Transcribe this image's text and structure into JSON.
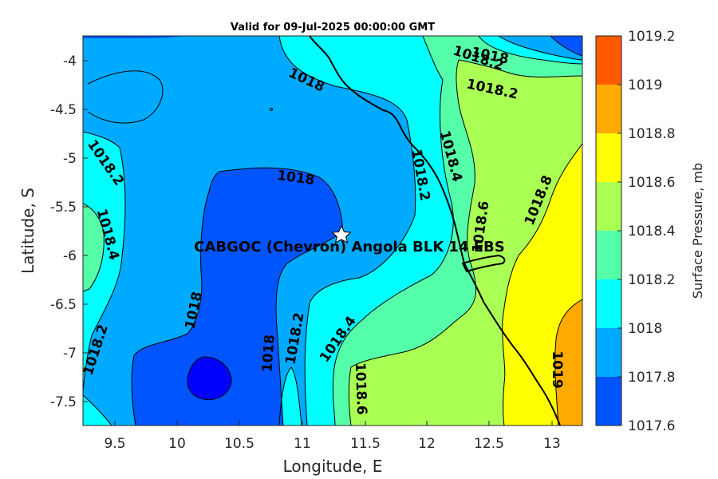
{
  "title": "Valid for 09-Jul-2025 00:00:00 GMT",
  "x_axis": {
    "label": "Longitude, E",
    "ticks": [
      "9.5",
      "10",
      "10.5",
      "11",
      "11.5",
      "12",
      "12.5",
      "13"
    ]
  },
  "y_axis": {
    "label": "Latitude, S",
    "ticks": [
      "-4",
      "-4.5",
      "-5",
      "-5.5",
      "-6",
      "-6.5",
      "-7",
      "-7.5"
    ]
  },
  "colorbar": {
    "label": "Surface Pressure, mb",
    "ticks": [
      "1019.2",
      "1019",
      "1018.8",
      "1018.6",
      "1018.4",
      "1018.2",
      "1018",
      "1017.8",
      "1017.6"
    ],
    "colors": [
      "#ff5a00",
      "#ffaa00",
      "#ffff00",
      "#aaff55",
      "#55ffaa",
      "#00ffff",
      "#00aaff",
      "#0055ff",
      "#0000ff"
    ]
  },
  "site": {
    "label": "CABGOC (Chevron)  Angola BLK 14  EBS",
    "marker": "star-icon"
  },
  "contour_labels": [
    "1018",
    "1018.2",
    "1018",
    "1018.2",
    "1018.4",
    "1018.2",
    "1018.4",
    "1018.6",
    "1018.8",
    "1018.6",
    "1018",
    "1018.2",
    "1018",
    "1018.2",
    "1018.4",
    "1018.6",
    "1019"
  ]
}
